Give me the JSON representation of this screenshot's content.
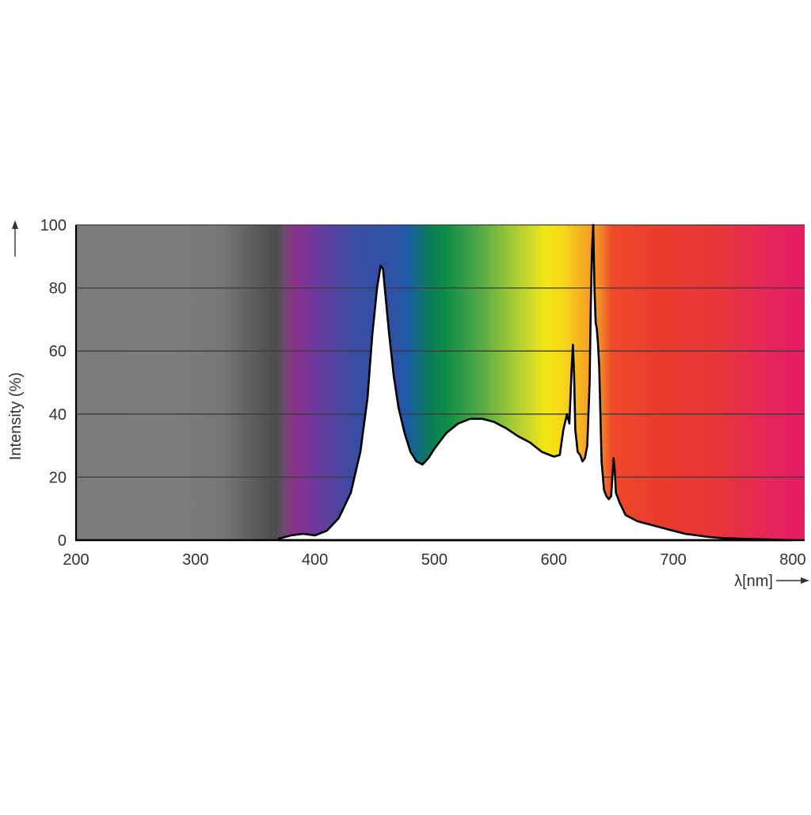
{
  "chart_data": {
    "type": "area",
    "title": "",
    "xlabel": "λ[nm]",
    "ylabel": "Intensity (%)",
    "xlim": [
      200,
      810
    ],
    "ylim": [
      0,
      100
    ],
    "x_ticks": [
      200,
      300,
      400,
      500,
      600,
      700,
      800
    ],
    "y_ticks": [
      0,
      20,
      40,
      60,
      80,
      100
    ],
    "grid": true,
    "legend": "none",
    "background": "visible-spectrum gradient (grey below 370 nm, violet → blue → green → yellow → orange → red → magenta)",
    "series": [
      {
        "x": [
          370,
          380,
          390,
          400,
          410,
          420,
          430,
          438,
          444,
          448,
          452,
          455,
          457,
          459,
          462,
          466,
          470,
          475,
          480,
          485,
          490,
          495,
          500,
          510,
          520,
          530,
          540,
          550,
          560,
          570,
          580,
          590,
          600,
          605,
          608,
          611,
          613,
          615,
          616,
          617,
          618,
          620,
          622,
          624,
          626,
          628,
          630,
          631,
          632,
          633,
          634,
          635,
          636,
          637,
          638,
          639,
          640,
          642,
          644,
          646,
          648,
          649,
          650,
          651,
          652,
          655,
          660,
          670,
          680,
          690,
          700,
          710,
          720,
          730,
          740,
          760,
          780,
          800
        ],
        "y": [
          0.5,
          1.5,
          2,
          1.5,
          3,
          7,
          15,
          28,
          45,
          65,
          80,
          87,
          86,
          78,
          66,
          52,
          42,
          34,
          28,
          25,
          24,
          26,
          29,
          34,
          37,
          38.5,
          38.5,
          37.5,
          35.5,
          33,
          31,
          28,
          26.5,
          27,
          35,
          40,
          37,
          55,
          62,
          52,
          35,
          28,
          27,
          25,
          26,
          30,
          50,
          75,
          92,
          100,
          80,
          69,
          67,
          62,
          55,
          40,
          25,
          16,
          14,
          13,
          14,
          20,
          26,
          22,
          15,
          12,
          8,
          6,
          5,
          4,
          3,
          2,
          1.5,
          1,
          0.7,
          0.4,
          0.2,
          0
        ]
      }
    ],
    "colors": {
      "curve_stroke": "#000000",
      "curve_fill": "#ffffff",
      "gridline": "#3a3a3a",
      "axis": "#000000",
      "tick_text": "#333333"
    }
  }
}
